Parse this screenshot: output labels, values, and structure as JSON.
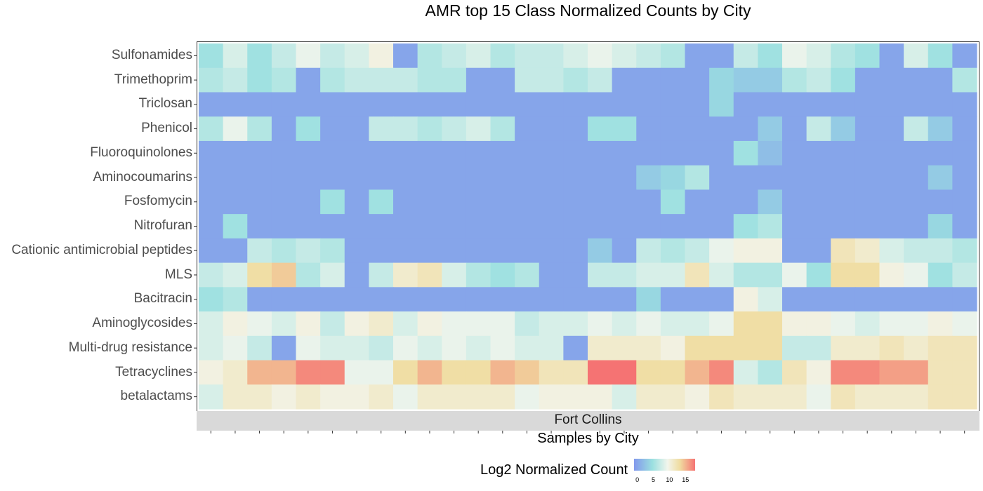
{
  "chart_data": {
    "type": "heatmap",
    "title": "AMR top 15 Class Normalized Counts by City",
    "xlabel": "Samples by City",
    "facet_label": "Fort Collins",
    "legend": {
      "title": "Log2 Normalized Count",
      "ticks": [
        "0",
        "5",
        "10",
        "15"
      ],
      "tick_values": [
        0,
        5,
        10,
        15
      ],
      "range": [
        -1,
        18
      ],
      "position": "bottom"
    },
    "colors": {
      "low": "#8298ec",
      "mid1": "#9be0e0",
      "mid2": "#f2f5ec",
      "mid3": "#f0dca0",
      "high": "#f57373"
    },
    "rows": [
      "Sulfonamides",
      "Trimethoprim",
      "Triclosan",
      "Phenicol",
      "Fluoroquinolones",
      "Aminocoumarins",
      "Fosfomycin",
      "Nitrofuran",
      "Cationic antimicrobial peptides",
      "MLS",
      "Bacitracin",
      "Aminoglycosides",
      "Multi-drug resistance",
      "Tetracyclines",
      "betalactams"
    ],
    "n_samples": 32,
    "values": [
      [
        5,
        8,
        5,
        7,
        9,
        7,
        8,
        10,
        0,
        6,
        7,
        8,
        6,
        7,
        7,
        8,
        9,
        8,
        7,
        6,
        0,
        0,
        7,
        5,
        9,
        8,
        6,
        5,
        0,
        8,
        5,
        0
      ],
      [
        6,
        7,
        5,
        6,
        0,
        6,
        7,
        7,
        7,
        6,
        6,
        0,
        0,
        7,
        7,
        6,
        7,
        0,
        0,
        0,
        0,
        4,
        3,
        3,
        6,
        7,
        5,
        0,
        0,
        0,
        0,
        6
      ],
      [
        0,
        0,
        0,
        0,
        0,
        0,
        0,
        0,
        0,
        0,
        0,
        0,
        0,
        0,
        0,
        0,
        0,
        0,
        0,
        0,
        0,
        4,
        0,
        0,
        0,
        0,
        0,
        0,
        0,
        0,
        0,
        0
      ],
      [
        6,
        9,
        6,
        0,
        5,
        0,
        0,
        7,
        7,
        6,
        7,
        8,
        6,
        0,
        0,
        0,
        5,
        5,
        0,
        0,
        0,
        0,
        0,
        3,
        0,
        7,
        3,
        0,
        0,
        7,
        3,
        0
      ],
      [
        0,
        0,
        0,
        0,
        0,
        0,
        0,
        0,
        0,
        0,
        0,
        0,
        0,
        0,
        0,
        0,
        0,
        0,
        0,
        0,
        0,
        0,
        5,
        2,
        0,
        0,
        0,
        0,
        0,
        0,
        0,
        0
      ],
      [
        0,
        0,
        0,
        0,
        0,
        0,
        0,
        0,
        0,
        0,
        0,
        0,
        0,
        0,
        0,
        0,
        0,
        0,
        3,
        4,
        6,
        0,
        0,
        0,
        0,
        0,
        0,
        0,
        0,
        0,
        3,
        0
      ],
      [
        0,
        0,
        0,
        0,
        0,
        5,
        0,
        5,
        0,
        0,
        0,
        0,
        0,
        0,
        0,
        0,
        0,
        0,
        0,
        5,
        0,
        0,
        0,
        3,
        0,
        0,
        0,
        0,
        0,
        0,
        0,
        0
      ],
      [
        0,
        5,
        0,
        0,
        0,
        0,
        0,
        0,
        0,
        0,
        0,
        0,
        0,
        0,
        0,
        0,
        0,
        0,
        0,
        0,
        0,
        0,
        5,
        6,
        0,
        0,
        0,
        0,
        0,
        0,
        4,
        0
      ],
      [
        0,
        0,
        7,
        6,
        7,
        6,
        0,
        0,
        0,
        0,
        0,
        0,
        0,
        0,
        0,
        0,
        3,
        0,
        7,
        6,
        7,
        9,
        10,
        10,
        0,
        0,
        12,
        11,
        8,
        7,
        7,
        6
      ],
      [
        7,
        8,
        13,
        14,
        6,
        8,
        0,
        7,
        11,
        12,
        8,
        6,
        5,
        6,
        0,
        0,
        7,
        7,
        8,
        8,
        12,
        8,
        6,
        6,
        9,
        5,
        13,
        13,
        10,
        9,
        5,
        7
      ],
      [
        5,
        6,
        0,
        0,
        0,
        0,
        0,
        0,
        0,
        0,
        0,
        0,
        0,
        0,
        0,
        0,
        0,
        0,
        4,
        0,
        0,
        0,
        10,
        8,
        0,
        0,
        0,
        0,
        0,
        0,
        0,
        0
      ],
      [
        8,
        10,
        9,
        8,
        10,
        7,
        10,
        11,
        8,
        10,
        9,
        9,
        9,
        7,
        8,
        8,
        9,
        8,
        9,
        8,
        8,
        9,
        13,
        13,
        10,
        10,
        9,
        8,
        9,
        9,
        10,
        9
      ],
      [
        8,
        9,
        7,
        0,
        9,
        8,
        8,
        7,
        9,
        8,
        9,
        8,
        9,
        8,
        8,
        0,
        11,
        11,
        11,
        10,
        13,
        13,
        13,
        13,
        7,
        7,
        11,
        11,
        12,
        11,
        12,
        12
      ],
      [
        10,
        11,
        15,
        15,
        17,
        17,
        9,
        9,
        13,
        15,
        13,
        13,
        15,
        14,
        12,
        12,
        18,
        18,
        13,
        13,
        15,
        17,
        8,
        6,
        12,
        10,
        17,
        17,
        16,
        16,
        12,
        12
      ],
      [
        8,
        11,
        11,
        10,
        11,
        10,
        10,
        11,
        9,
        11,
        11,
        11,
        11,
        9,
        10,
        10,
        10,
        8,
        11,
        11,
        10,
        12,
        11,
        11,
        11,
        9,
        12,
        11,
        11,
        11,
        12,
        12
      ]
    ]
  }
}
